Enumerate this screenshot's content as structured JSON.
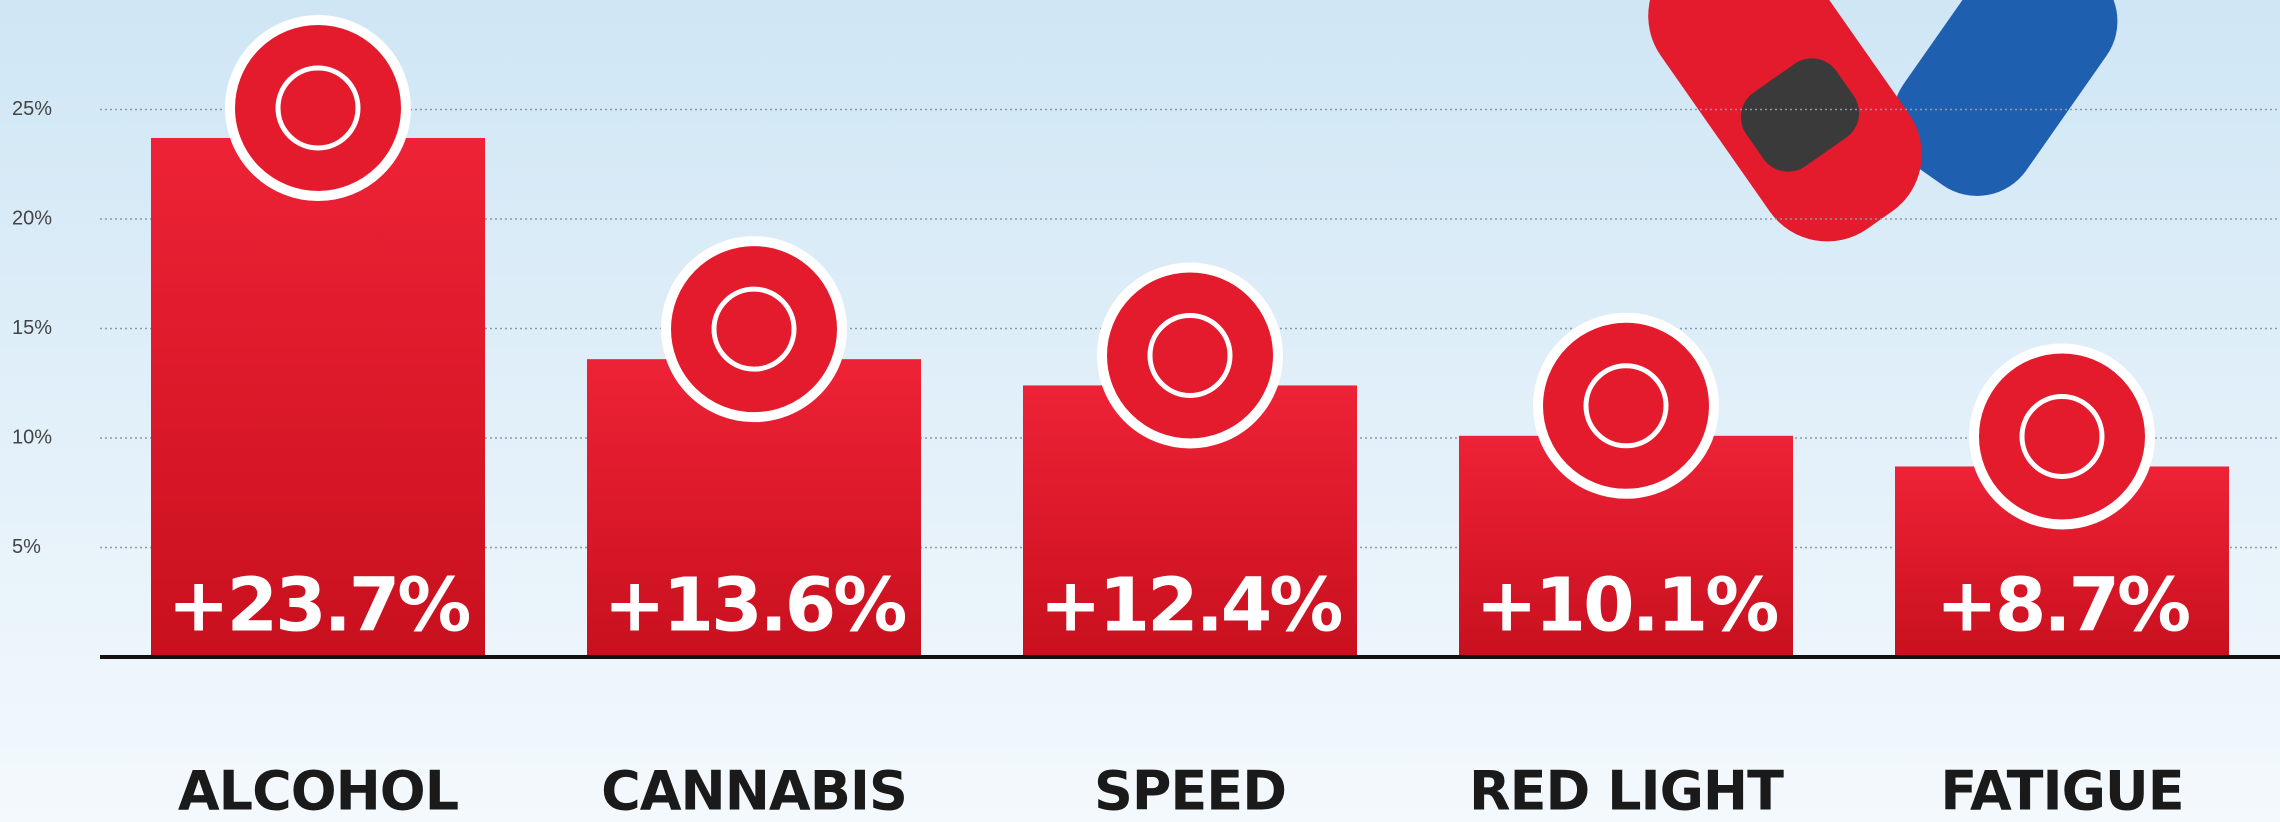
{
  "chart_data": {
    "type": "bar",
    "categories": [
      "ALCOHOL",
      "CANNABIS",
      "SPEED",
      "RED LIGHT",
      "FATIGUE"
    ],
    "values": [
      23.7,
      13.6,
      12.4,
      10.1,
      8.7
    ],
    "value_labels": [
      "+23.7%",
      "+13.6%",
      "+12.4%",
      "+10.1%",
      "+8.7%"
    ],
    "color": "#e31b2d",
    "ylim": [
      0,
      30
    ],
    "yticks": [
      {
        "value": 5,
        "label": "5%"
      },
      {
        "value": 10,
        "label": "10%"
      },
      {
        "value": 15,
        "label": "15%"
      },
      {
        "value": 20,
        "label": "20%"
      },
      {
        "value": 25,
        "label": "25%"
      }
    ],
    "grid": true
  }
}
